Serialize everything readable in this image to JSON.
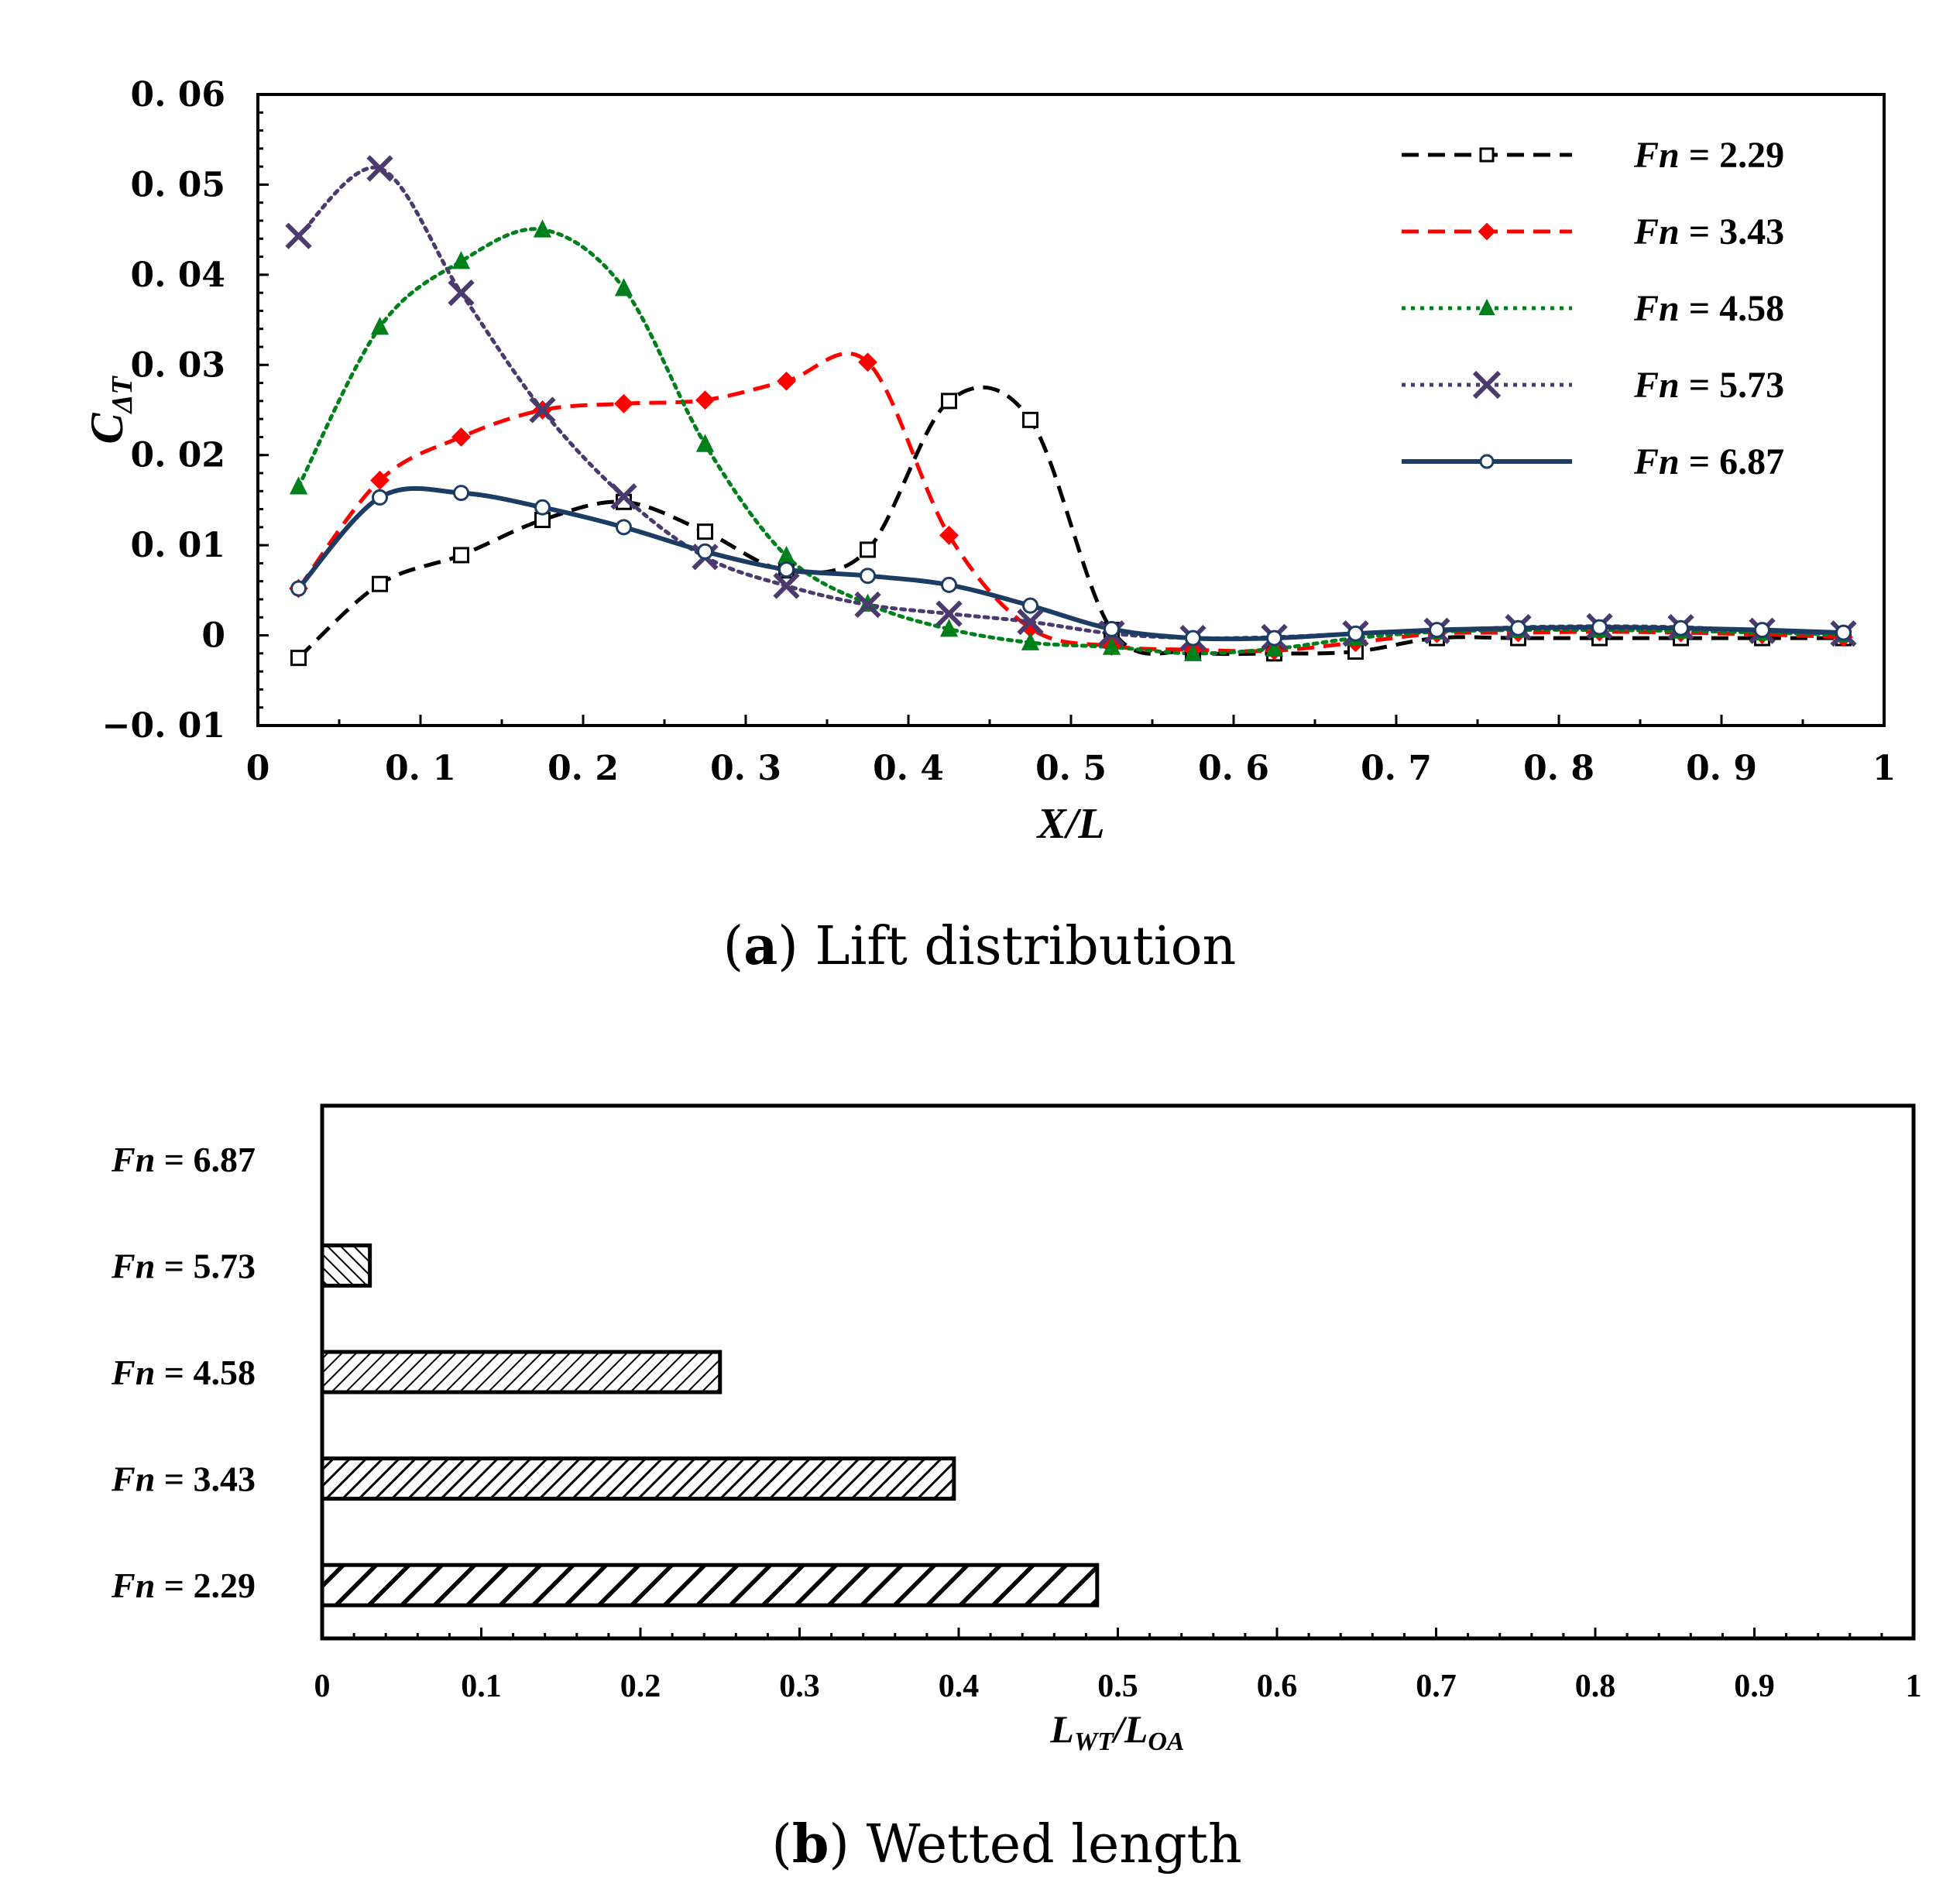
{
  "chart_data": [
    {
      "type": "line",
      "caption_letter": "a",
      "caption_text": "Lift distribution",
      "xlabel": "X/L",
      "ylabel_main": "C",
      "ylabel_sub": "ΔT",
      "xlim": [
        0,
        1
      ],
      "ylim": [
        -0.01,
        0.06
      ],
      "x_ticks": [
        "0",
        "0.1",
        "0.2",
        "0.3",
        "0.4",
        "0.5",
        "0.6",
        "0.7",
        "0.8",
        "0.9",
        "1"
      ],
      "y_ticks": [
        "-0.01",
        "0",
        "0.01",
        "0.02",
        "0.03",
        "0.04",
        "0.05",
        "0.06"
      ],
      "x": [
        0.025,
        0.075,
        0.125,
        0.175,
        0.225,
        0.275,
        0.325,
        0.375,
        0.425,
        0.475,
        0.525,
        0.575,
        0.625,
        0.675,
        0.725,
        0.775,
        0.825,
        0.875,
        0.925,
        0.975
      ],
      "legend_prefix": "Fn",
      "series": [
        {
          "name": "Fn = 2.29",
          "fn_value": "= 2.29",
          "color": "#000000",
          "dash": "dashed",
          "marker": "square",
          "values": [
            -0.0025,
            0.0057,
            0.0089,
            0.0128,
            0.0148,
            0.0115,
            0.0072,
            0.0095,
            0.026,
            0.0239,
            0.0006,
            -0.0018,
            -0.002,
            -0.0018,
            -0.0003,
            -0.0003,
            -0.0003,
            -0.0003,
            -0.0003,
            -0.0003
          ]
        },
        {
          "name": "Fn = 3.43",
          "fn_value": "= 3.43",
          "color": "#ff0000",
          "dash": "dashed",
          "marker": "diamond",
          "values": [
            0.0052,
            0.0172,
            0.022,
            0.025,
            0.0257,
            0.0261,
            0.0282,
            0.0303,
            0.0111,
            0.0008,
            -0.0012,
            -0.0016,
            -0.0017,
            -0.0008,
            0.0002,
            0.0003,
            0.0004,
            0.0003,
            0.0001,
            -0.0002
          ]
        },
        {
          "name": "Fn = 4.58",
          "fn_value": "= 4.58",
          "color": "#00801a",
          "dash": "dotted",
          "marker": "triangle",
          "values": [
            0.0165,
            0.0342,
            0.0415,
            0.045,
            0.0385,
            0.0212,
            0.0088,
            0.0035,
            0.0007,
            -0.0008,
            -0.0013,
            -0.002,
            -0.0015,
            -0.0003,
            0.0004,
            0.0006,
            0.0006,
            0.0005,
            0.0003,
            0.0001
          ]
        },
        {
          "name": "Fn = 5.73",
          "fn_value": "= 5.73",
          "color": "#4a3a6e",
          "dash": "dotted",
          "marker": "x",
          "values": [
            0.0443,
            0.0518,
            0.038,
            0.025,
            0.0154,
            0.0087,
            0.0055,
            0.0034,
            0.0024,
            0.0015,
            0.0002,
            -0.0003,
            -0.0002,
            0.0002,
            0.0005,
            0.0009,
            0.001,
            0.0009,
            0.0005,
            0.0002
          ]
        },
        {
          "name": "Fn = 6.87",
          "fn_value": "= 6.87",
          "color": "#1c3c64",
          "dash": "solid",
          "marker": "circle",
          "values": [
            0.0052,
            0.0153,
            0.0158,
            0.0142,
            0.012,
            0.0093,
            0.0073,
            0.0066,
            0.0056,
            0.0033,
            0.0007,
            -0.0003,
            -0.0003,
            0.0002,
            0.0006,
            0.0008,
            0.0009,
            0.0008,
            0.0006,
            0.0003
          ]
        }
      ]
    },
    {
      "type": "bar",
      "orientation": "horizontal",
      "caption_letter": "b",
      "caption_text": "Wetted length",
      "xlabel_main": "L",
      "xlabel_sub1": "WT",
      "xlabel_sep": "/L",
      "xlabel_sub2": "OA",
      "xlim": [
        0,
        1
      ],
      "x_ticks": [
        "0",
        "0.1",
        "0.2",
        "0.3",
        "0.4",
        "0.5",
        "0.6",
        "0.7",
        "0.8",
        "0.9",
        "1"
      ],
      "category_prefix": "Fn",
      "categories": [
        "Fn = 6.87",
        "Fn = 5.73",
        "Fn = 4.58",
        "Fn = 3.43",
        "Fn = 2.29"
      ],
      "category_values": [
        "= 6.87",
        "= 5.73",
        "= 4.58",
        "= 3.43",
        "= 2.29"
      ],
      "values": [
        0.0,
        0.03,
        0.25,
        0.397,
        0.487
      ]
    }
  ]
}
